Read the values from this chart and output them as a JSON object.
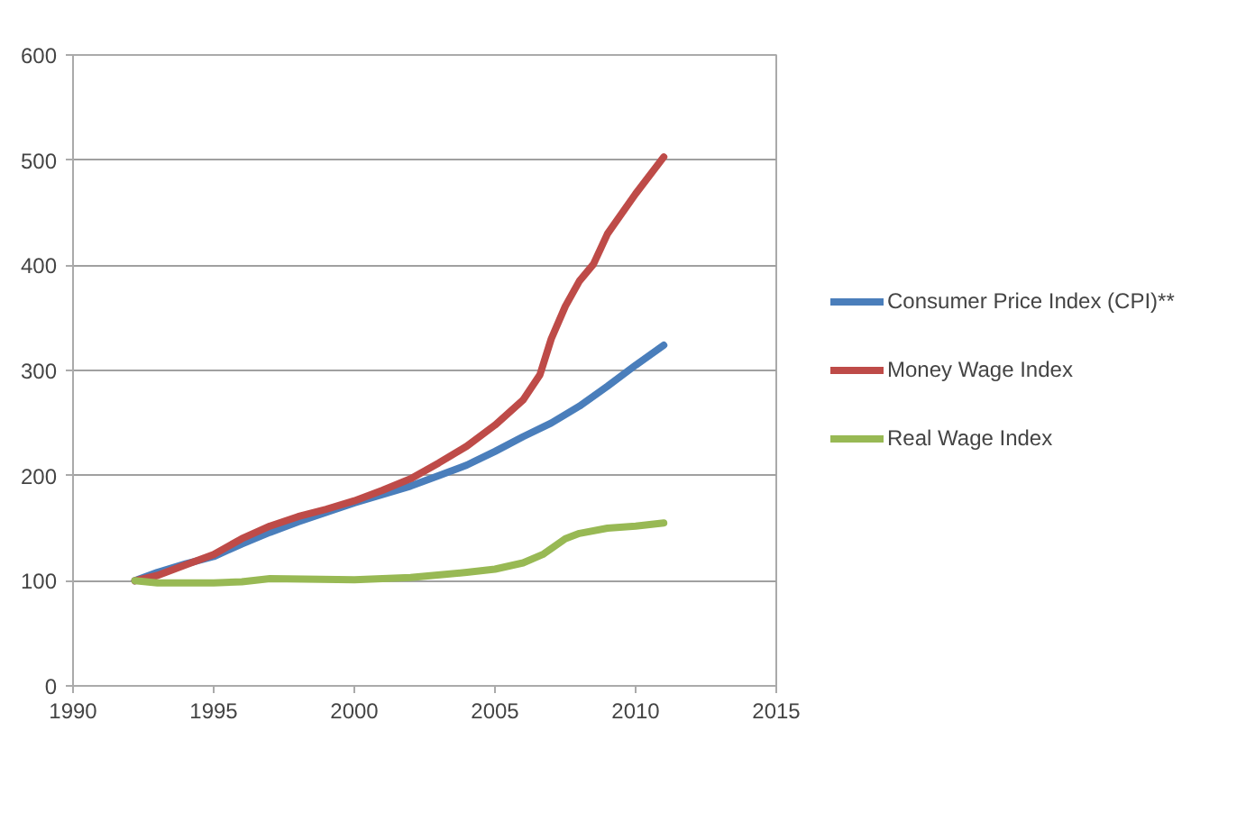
{
  "chart_data": {
    "type": "line",
    "xlim": [
      1990,
      2015
    ],
    "xticks": [
      1990,
      1995,
      2000,
      2005,
      2010,
      2015
    ],
    "ylim": [
      0,
      600
    ],
    "yticks": [
      0,
      100,
      200,
      300,
      400,
      500,
      600
    ],
    "grid": "y",
    "legend": "right",
    "marker": "none",
    "line_style": "solid",
    "series": [
      {
        "name": "Consumer Price Index (CPI)**",
        "color": "#4a7ebb",
        "x": [
          1992.2,
          1993,
          1994,
          1995,
          1996,
          1997,
          1998,
          1999,
          2000,
          2001,
          2002,
          2003,
          2004,
          2005,
          2006,
          2007,
          2008,
          2009,
          2010,
          2011
        ],
        "values": [
          100,
          108,
          116,
          123,
          135,
          146,
          156,
          165,
          174,
          182,
          190,
          200,
          210,
          223,
          237,
          250,
          266,
          285,
          305,
          324
        ]
      },
      {
        "name": "Money Wage Index",
        "color": "#be4b48",
        "x": [
          1992.2,
          1993,
          1994,
          1995,
          1996,
          1997,
          1998,
          1999,
          2000,
          2001,
          2002,
          2003,
          2004,
          2005,
          2006,
          2006.6,
          2007,
          2007.5,
          2008,
          2008.5,
          2009,
          2010,
          2011
        ],
        "values": [
          100,
          105,
          115,
          125,
          140,
          152,
          161,
          168,
          176,
          186,
          197,
          212,
          228,
          248,
          272,
          296,
          330,
          361,
          385,
          401,
          430,
          468,
          503
        ]
      },
      {
        "name": "Real Wage Index",
        "color": "#98b954",
        "x": [
          1992.2,
          1993,
          1995,
          1996,
          1997,
          2000,
          2002,
          2004,
          2005,
          2006,
          2006.7,
          2007.5,
          2008,
          2009,
          2010,
          2011
        ],
        "values": [
          100,
          98,
          98,
          99,
          102,
          101,
          103,
          108,
          111,
          117,
          125,
          140,
          145,
          150,
          152,
          155
        ]
      }
    ]
  }
}
